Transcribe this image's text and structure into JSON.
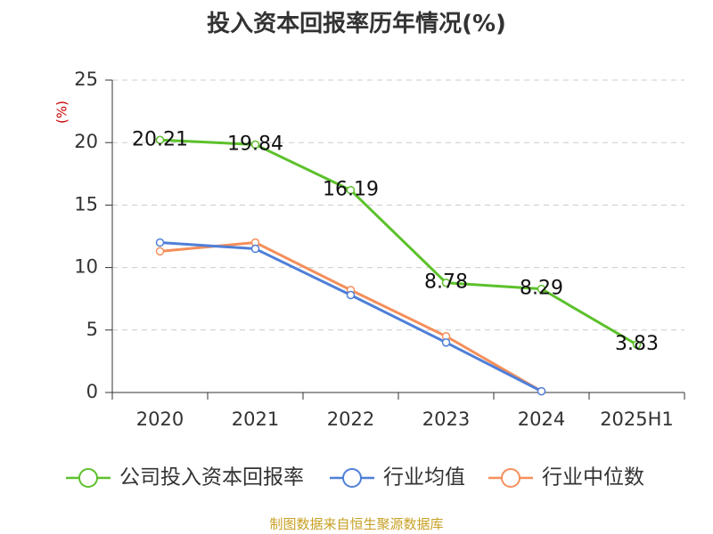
{
  "chart_data": {
    "type": "line",
    "title": "投入资本回报率历年情况(%)",
    "ylabel": "(%)",
    "categories": [
      "2020",
      "2021",
      "2022",
      "2023",
      "2024",
      "2025H1"
    ],
    "ylim": [
      0,
      25
    ],
    "yticks": [
      0,
      5,
      10,
      15,
      20,
      25
    ],
    "grid": true,
    "legend_position": "bottom",
    "series": [
      {
        "name": "公司投入资本回报率",
        "color": "#5cc12b",
        "values": [
          20.21,
          19.84,
          16.19,
          8.78,
          8.29,
          3.83
        ],
        "labels": [
          "20.21",
          "19.84",
          "16.19",
          "8.78",
          "8.29",
          "3.83"
        ]
      },
      {
        "name": "行业均值",
        "color": "#4f7fd8",
        "values": [
          12.0,
          11.5,
          7.8,
          4.0,
          0.1,
          null
        ]
      },
      {
        "name": "行业中位数",
        "color": "#f58f5b",
        "values": [
          11.3,
          12.0,
          8.2,
          4.5,
          0.1,
          null
        ]
      }
    ]
  },
  "colors": {
    "axis": "#333333",
    "grid": "#cccccc",
    "ylabel": "#cc0000",
    "source": "#c8a024"
  },
  "source_note": "制图数据来自恒生聚源数据库"
}
